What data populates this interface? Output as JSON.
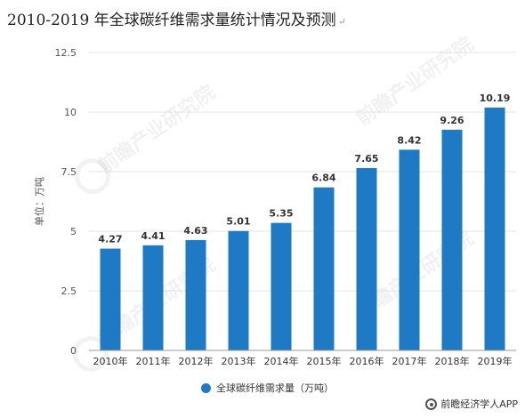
{
  "title": "2010-2019 年全球碳纤维需求量统计情况及预测",
  "title_mark": "↵",
  "brand": {
    "text": "前瞻经济学人APP",
    "icon": "qianzhan-logo-icon"
  },
  "watermark_text": "前瞻产业研究院",
  "chart_data": {
    "type": "bar",
    "categories": [
      "2010年",
      "2011年",
      "2012年",
      "2013年",
      "2014年",
      "2015年",
      "2016年",
      "2017年",
      "2018年",
      "2019年"
    ],
    "series": [
      {
        "name": "全球碳纤维需求量（万吨）",
        "values": [
          4.27,
          4.41,
          4.63,
          5.01,
          5.35,
          6.84,
          7.65,
          8.42,
          9.26,
          10.19
        ],
        "labels": [
          "4.27",
          "4.41",
          "4.63",
          "5.01",
          "5.35",
          "6.84",
          "7.65",
          "8.42",
          "9.26",
          "10.19"
        ],
        "color": "#1f7ac4"
      }
    ],
    "ylabel": "单位：万吨",
    "ylim": [
      0,
      12.5
    ],
    "yticks": [
      0,
      2.5,
      5,
      7.5,
      10,
      12.5
    ],
    "ytick_labels": [
      "0",
      "2.5",
      "5",
      "7.5",
      "10",
      "12.5"
    ],
    "grid": true,
    "legend": "bottom"
  }
}
